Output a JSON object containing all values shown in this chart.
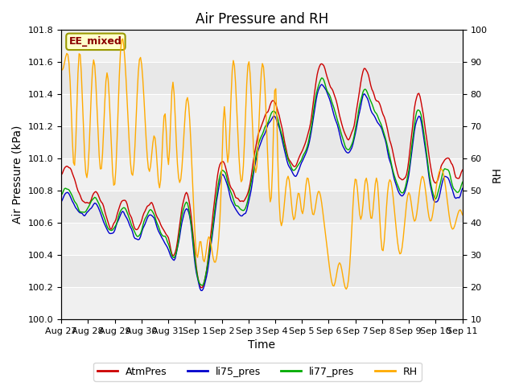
{
  "title": "Air Pressure and RH",
  "xlabel": "Time",
  "ylabel_left": "Air Pressure (kPa)",
  "ylabel_right": "RH",
  "ylim_left": [
    100.0,
    101.8
  ],
  "ylim_right": [
    10,
    100
  ],
  "yticks_left": [
    100.0,
    100.2,
    100.4,
    100.6,
    100.8,
    101.0,
    101.2,
    101.4,
    101.6,
    101.8
  ],
  "yticks_right": [
    10,
    20,
    30,
    40,
    50,
    60,
    70,
    80,
    90,
    100
  ],
  "color_atm": "#cc0000",
  "color_li75": "#0000cc",
  "color_li77": "#00aa00",
  "color_rh": "#ffaa00",
  "label_atm": "AtmPres",
  "label_li75": "li75_pres",
  "label_li77": "li77_pres",
  "label_rh": "RH",
  "annotation_text": "EE_mixed",
  "annotation_color": "#8b0000",
  "annotation_bg": "#ffffcc",
  "annotation_border": "#999900",
  "background_color": "#ffffff",
  "plot_bg_color": "#e8e8e8",
  "band_color": "#f0f0f0",
  "grid_color": "#ffffff",
  "title_fontsize": 12,
  "axis_fontsize": 10,
  "tick_fontsize": 8,
  "legend_fontsize": 9,
  "xtick_labels": [
    "Aug 27",
    "Aug 28",
    "Aug 29",
    "Aug 30",
    "Aug 31",
    "Sep 1",
    "Sep 2",
    "Sep 3",
    "Sep 4",
    "Sep 5",
    "Sep 6",
    "Sep 7",
    "Sep 8",
    "Sep 9",
    "Sep 10",
    "Sep 11"
  ],
  "xtick_positions": [
    0,
    1,
    2,
    3,
    4,
    5,
    6,
    7,
    8,
    9,
    10,
    11,
    12,
    13,
    14,
    15
  ]
}
